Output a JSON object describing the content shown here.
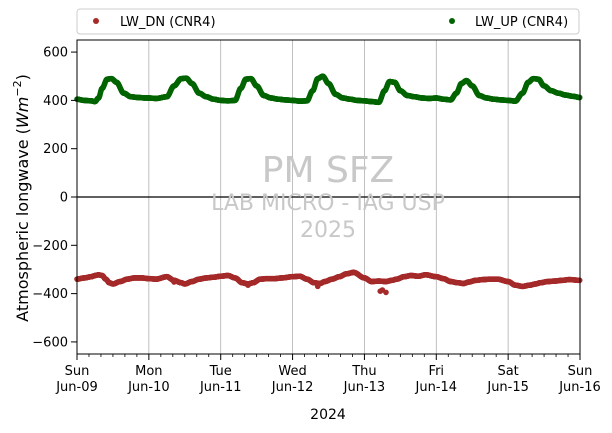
{
  "chart_data": {
    "type": "scatter",
    "ylabel_prefix": "Atmospheric longwave (",
    "ylabel_unit_var": "W",
    "ylabel_unit_m": "m",
    "ylabel_unit_exp": "−2",
    "ylabel_suffix": ")",
    "xlabel": "2024",
    "ylim": [
      -650,
      650
    ],
    "yticks": [
      600,
      400,
      200,
      0,
      -200,
      -400,
      -600
    ],
    "xlim_days": [
      0,
      7
    ],
    "xticks": [
      {
        "day": "Sun",
        "date": "Jun-09"
      },
      {
        "day": "Mon",
        "date": "Jun-10"
      },
      {
        "day": "Tue",
        "date": "Jun-11"
      },
      {
        "day": "Wed",
        "date": "Jun-12"
      },
      {
        "day": "Thu",
        "date": "Jun-13"
      },
      {
        "day": "Fri",
        "date": "Jun-14"
      },
      {
        "day": "Sat",
        "date": "Jun-15"
      },
      {
        "day": "Sun",
        "date": "Jun-16"
      }
    ],
    "grid": "vertical",
    "legend_placement": "top",
    "watermark": [
      "PM SFZ",
      "LAB MICRO - IAG USP",
      "2025"
    ],
    "series": [
      {
        "name": "LW_DN (CNR4)",
        "color": "#a52a2a",
        "x": [
          0,
          0.1,
          0.2,
          0.25,
          0.3,
          0.35,
          0.4,
          0.45,
          0.5,
          0.6,
          0.7,
          0.8,
          0.9,
          1.0,
          1.1,
          1.25,
          1.35,
          1.45,
          1.5,
          1.6,
          1.7,
          1.8,
          1.9,
          2.0,
          2.1,
          2.2,
          2.3,
          2.38,
          2.45,
          2.55,
          2.65,
          2.75,
          2.85,
          3.0,
          3.1,
          3.2,
          3.3,
          3.38,
          3.45,
          3.55,
          3.65,
          3.75,
          3.85,
          4.0,
          4.1,
          4.2,
          4.3,
          4.38,
          4.45,
          4.55,
          4.65,
          4.75,
          4.85,
          5.0,
          5.1,
          5.2,
          5.3,
          5.38,
          5.45,
          5.55,
          5.65,
          5.75,
          5.85,
          6.0,
          6.1,
          6.2,
          6.3,
          6.38,
          6.45,
          6.55,
          6.65,
          6.75,
          6.85,
          7.0
        ],
        "y": [
          -340,
          -335,
          -330,
          -325,
          -322,
          -325,
          -340,
          -355,
          -360,
          -350,
          -340,
          -335,
          -335,
          -338,
          -340,
          -330,
          -345,
          -355,
          -360,
          -350,
          -340,
          -335,
          -332,
          -328,
          -325,
          -335,
          -355,
          -360,
          -355,
          -340,
          -338,
          -338,
          -335,
          -330,
          -328,
          -340,
          -355,
          -358,
          -350,
          -340,
          -330,
          -318,
          -312,
          -335,
          -350,
          -348,
          -350,
          -345,
          -340,
          -330,
          -325,
          -328,
          -322,
          -330,
          -338,
          -350,
          -355,
          -358,
          -352,
          -345,
          -342,
          -340,
          -340,
          -350,
          -365,
          -370,
          -365,
          -360,
          -355,
          -350,
          -348,
          -345,
          -342,
          -345
        ],
        "outliers": {
          "x": [
            1.35,
            2.38,
            3.35,
            4.25,
            4.22,
            4.3
          ],
          "y": [
            -352,
            -365,
            -370,
            -385,
            -390,
            -395
          ]
        }
      },
      {
        "name": "LW_UP (CNR4)",
        "color": "#006400",
        "x": [
          0,
          0.1,
          0.2,
          0.25,
          0.3,
          0.35,
          0.42,
          0.48,
          0.55,
          0.65,
          0.75,
          0.85,
          0.95,
          1.0,
          1.1,
          1.25,
          1.35,
          1.45,
          1.52,
          1.6,
          1.7,
          1.8,
          1.9,
          2.0,
          2.1,
          2.2,
          2.28,
          2.35,
          2.42,
          2.5,
          2.6,
          2.7,
          2.8,
          2.9,
          3.0,
          3.1,
          3.2,
          3.28,
          3.35,
          3.42,
          3.5,
          3.6,
          3.7,
          3.8,
          3.9,
          4.0,
          4.1,
          4.2,
          4.28,
          4.35,
          4.42,
          4.5,
          4.6,
          4.7,
          4.8,
          4.9,
          5.0,
          5.1,
          5.2,
          5.28,
          5.35,
          5.42,
          5.5,
          5.6,
          5.7,
          5.8,
          5.9,
          6.0,
          6.1,
          6.2,
          6.28,
          6.35,
          6.42,
          6.5,
          6.6,
          6.7,
          6.8,
          6.9,
          7.0
        ],
        "y": [
          405,
          400,
          398,
          395,
          410,
          450,
          488,
          490,
          475,
          430,
          415,
          412,
          410,
          410,
          408,
          415,
          460,
          490,
          492,
          470,
          430,
          415,
          405,
          400,
          398,
          400,
          450,
          488,
          490,
          460,
          420,
          410,
          405,
          402,
          400,
          397,
          398,
          440,
          490,
          500,
          470,
          425,
          410,
          405,
          400,
          398,
          395,
          392,
          440,
          478,
          475,
          440,
          420,
          415,
          410,
          408,
          410,
          405,
          402,
          430,
          470,
          482,
          460,
          420,
          410,
          405,
          402,
          400,
          397,
          430,
          475,
          490,
          488,
          460,
          440,
          430,
          422,
          417,
          412
        ]
      }
    ]
  }
}
